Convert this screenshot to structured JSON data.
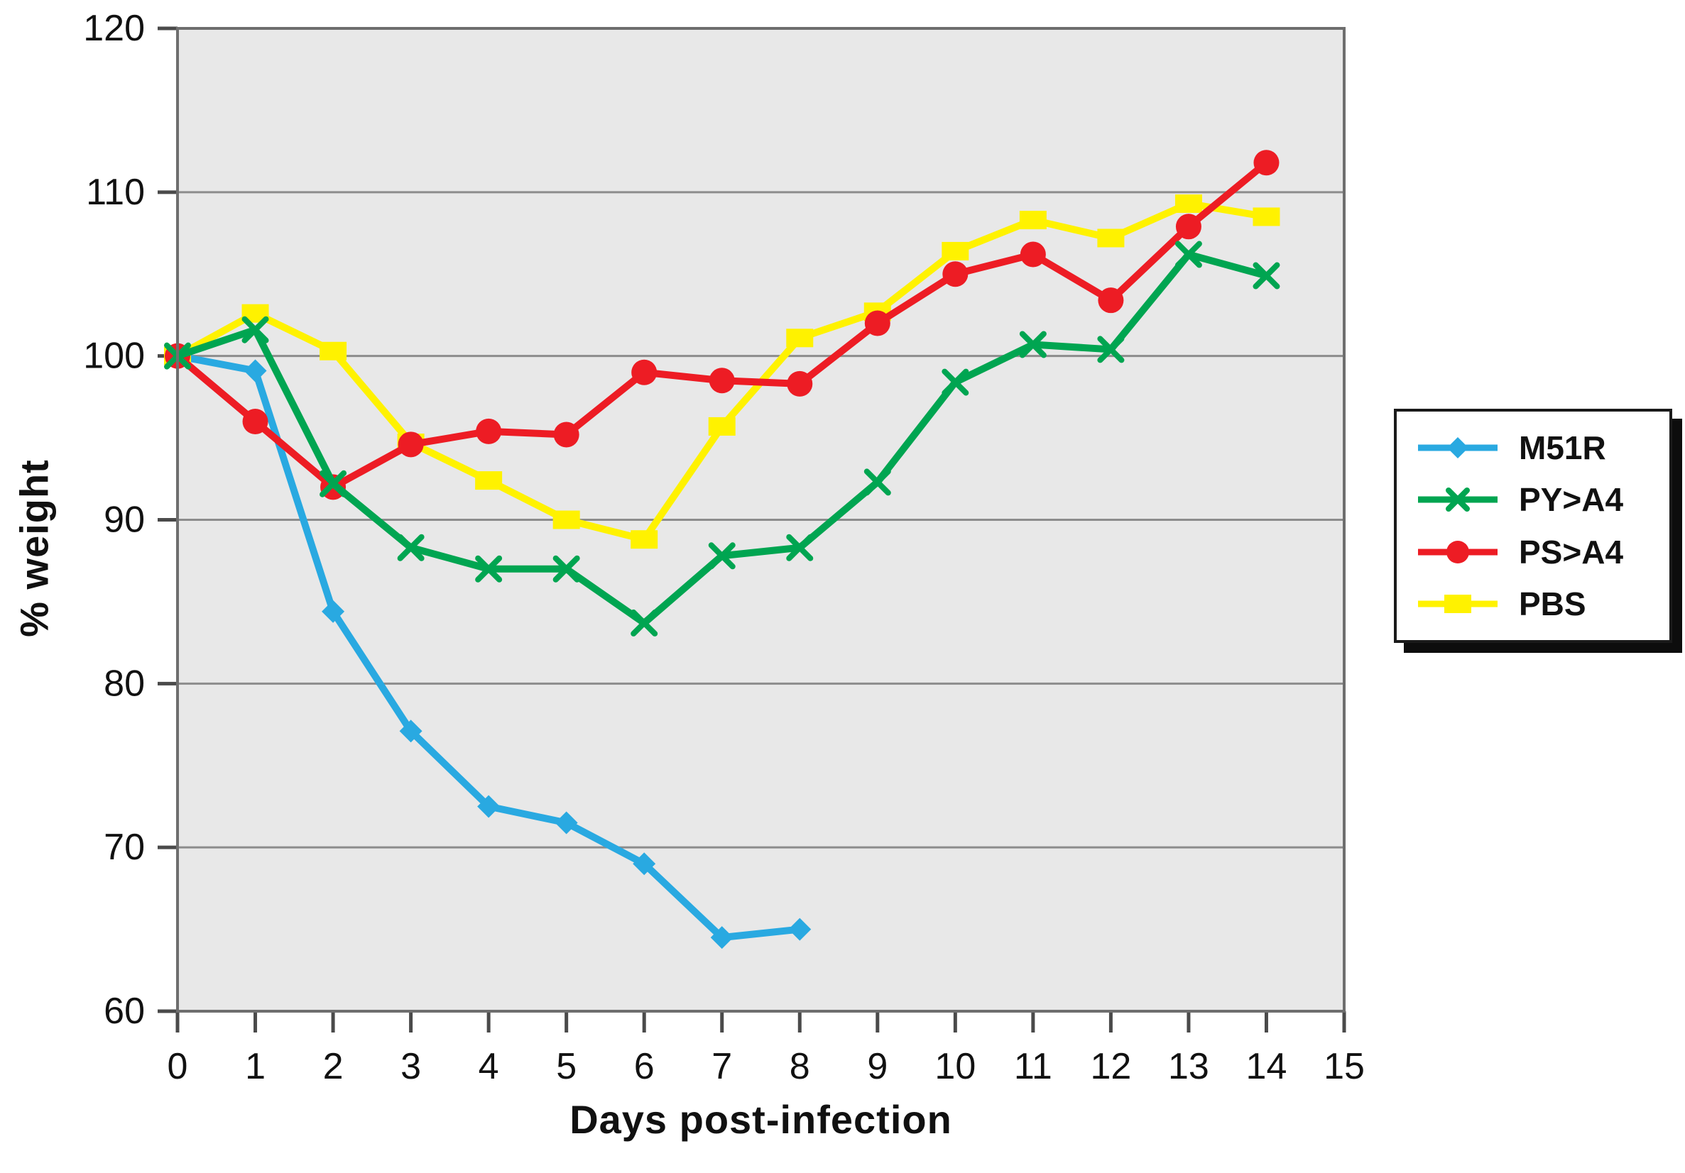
{
  "chart_data": {
    "type": "line",
    "title": "",
    "xlabel": "Days post-infection",
    "ylabel": "% weight",
    "xlim": [
      0,
      15
    ],
    "ylim": [
      60,
      120
    ],
    "x_ticks": [
      0,
      1,
      2,
      3,
      4,
      5,
      6,
      7,
      8,
      9,
      10,
      11,
      12,
      13,
      14,
      15
    ],
    "y_ticks": [
      60,
      70,
      80,
      90,
      100,
      110,
      120
    ],
    "y_gridlines": [
      70,
      80,
      90,
      100,
      110
    ],
    "grid": "horizontal-only",
    "plot_bg_color": "#e8e8e8",
    "gridline_color": "#8c8c8c",
    "frame_color": "#6e6e6e",
    "tick_color": "#4a4a4a",
    "legend_position": "right",
    "draw_order": [
      0,
      3,
      2,
      1
    ],
    "series": [
      {
        "name": "M51R",
        "color": "#29a9e1",
        "marker": "diamond",
        "x": [
          0,
          1,
          2,
          3,
          4,
          5,
          6,
          7,
          8
        ],
        "values": [
          100,
          99.1,
          84.4,
          77.1,
          72.5,
          71.5,
          69.0,
          64.5,
          65.0
        ]
      },
      {
        "name": "PY>A4",
        "color": "#00a551",
        "marker": "x",
        "x": [
          0,
          1,
          2,
          3,
          4,
          5,
          6,
          7,
          8,
          9,
          10,
          11,
          12,
          13,
          14
        ],
        "values": [
          100,
          101.6,
          92.2,
          88.3,
          87.0,
          87.0,
          83.7,
          87.8,
          88.3,
          92.3,
          98.4,
          100.7,
          100.4,
          106.2,
          104.9
        ]
      },
      {
        "name": "PS>A4",
        "color": "#ed1c24",
        "marker": "circle",
        "x": [
          0,
          1,
          2,
          3,
          4,
          5,
          6,
          7,
          8,
          9,
          10,
          11,
          12,
          13,
          14
        ],
        "values": [
          100,
          96.0,
          92.0,
          94.6,
          95.4,
          95.2,
          99.0,
          98.5,
          98.3,
          102.0,
          105.0,
          106.2,
          103.4,
          107.9,
          111.8
        ]
      },
      {
        "name": "PBS",
        "color": "#fff200",
        "marker": "square",
        "x": [
          0,
          1,
          2,
          3,
          4,
          5,
          6,
          7,
          8,
          9,
          10,
          11,
          12,
          13,
          14
        ],
        "values": [
          100,
          102.6,
          100.3,
          94.7,
          92.4,
          90.0,
          88.8,
          95.7,
          101.1,
          102.7,
          106.4,
          108.3,
          107.2,
          109.3,
          108.5
        ]
      }
    ]
  }
}
